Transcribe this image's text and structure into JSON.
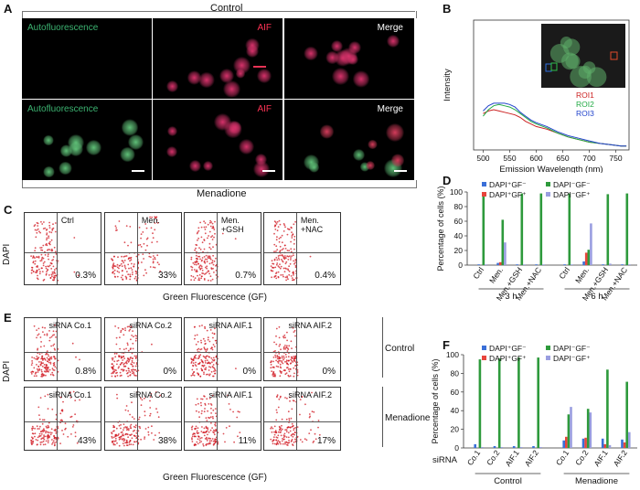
{
  "panel_a": {
    "label": "A",
    "top_title": "Control",
    "bottom_title": "Menadione",
    "cells": [
      {
        "text": "Autofluorescence",
        "color": "#3cb371"
      },
      {
        "text": "AIF",
        "color": "#ff3355"
      },
      {
        "text": "Merge",
        "color": "#ffffff"
      },
      {
        "text": "Autofluorescence",
        "color": "#3cb371"
      },
      {
        "text": "AIF",
        "color": "#ff3355"
      },
      {
        "text": "Merge",
        "color": "#ffffff"
      }
    ]
  },
  "panel_b": {
    "label": "B",
    "chart_data": {
      "type": "line",
      "xlabel": "Emission Wavelength (nm)",
      "ylabel": "Intensity",
      "x": [
        500,
        510,
        520,
        530,
        540,
        550,
        560,
        570,
        580,
        590,
        600,
        620,
        640,
        660,
        680,
        700,
        720,
        740,
        760,
        770
      ],
      "xticks": [
        500,
        550,
        600,
        650,
        700,
        750
      ],
      "xlim": [
        482,
        775
      ],
      "ylim": [
        0,
        100
      ],
      "series": [
        {
          "name": "ROI1",
          "color": "#cc2222",
          "values": [
            28,
            30,
            31,
            30,
            29,
            28,
            27,
            25,
            22,
            20,
            18,
            16,
            13,
            10,
            8,
            6,
            5,
            4,
            3,
            3
          ]
        },
        {
          "name": "ROI2",
          "color": "#22aa44",
          "values": [
            26,
            31,
            34,
            35,
            34,
            33,
            31,
            28,
            25,
            22,
            20,
            17,
            13,
            10,
            8,
            6,
            5,
            4,
            3,
            3
          ]
        },
        {
          "name": "ROI3",
          "color": "#2244cc",
          "values": [
            30,
            34,
            36,
            36,
            36,
            35,
            33,
            29,
            26,
            23,
            21,
            18,
            14,
            11,
            9,
            7,
            5,
            4,
            3,
            3
          ]
        }
      ]
    }
  },
  "panel_c": {
    "label": "C",
    "ylabel": "DAPI",
    "xlabel": "Green Fluorescence (GF)",
    "plots": [
      {
        "title": "Ctrl",
        "pct": "0.3%"
      },
      {
        "title": "Men.",
        "pct": "33%"
      },
      {
        "title": "Men.\n+GSH",
        "pct": "0.7%"
      },
      {
        "title": "Men.\n+NAC",
        "pct": "0.4%"
      }
    ]
  },
  "panel_d": {
    "label": "D",
    "chart_data": {
      "type": "bar",
      "ylabel": "Percentage of cells (%)",
      "ylim": [
        0,
        100
      ],
      "yticks": [
        0,
        20,
        40,
        60,
        80,
        100
      ],
      "categories": [
        "Ctrl",
        "Men.",
        "Men.+GSH",
        "Men.+NAC",
        "Ctrl",
        "Men.",
        "Men.+GSH",
        "Men.+NAC"
      ],
      "groups": [
        {
          "label": "3 h",
          "start": 0,
          "end": 3
        },
        {
          "label": "6 h",
          "start": 4,
          "end": 7
        }
      ],
      "series": [
        {
          "name": "DAPI⁺GF⁻",
          "color": "#3a6fd8",
          "values": [
            1,
            3,
            1,
            1,
            1,
            5,
            1,
            1
          ]
        },
        {
          "name": "DAPI⁺GF⁺",
          "color": "#e8453c",
          "values": [
            0,
            4,
            0,
            0,
            0,
            17,
            0,
            0
          ]
        },
        {
          "name": "DAPI⁻GF⁻",
          "color": "#2e9a3c",
          "values": [
            98,
            62,
            98,
            98,
            98,
            21,
            97,
            98
          ]
        },
        {
          "name": "DAPI⁻GF⁺",
          "color": "#9a9ee0",
          "values": [
            1,
            31,
            1,
            1,
            1,
            57,
            2,
            1
          ]
        }
      ]
    }
  },
  "panel_e": {
    "label": "E",
    "ylabel": "DAPI",
    "xlabel": "Green Fluorescence (GF)",
    "row_labels": [
      "Control",
      "Menadione"
    ],
    "plots": [
      {
        "title": "siRNA Co.1",
        "pct": "0.8%"
      },
      {
        "title": "siRNA Co.2",
        "pct": "0%"
      },
      {
        "title": "siRNA AIF.1",
        "pct": "0%"
      },
      {
        "title": "siRNA AIF.2",
        "pct": "0%"
      },
      {
        "title": "siRNA Co.1",
        "pct": "43%"
      },
      {
        "title": "siRNA Co.2",
        "pct": "38%"
      },
      {
        "title": "siRNA AIF.1",
        "pct": "11%"
      },
      {
        "title": "siRNA AIF.2",
        "pct": "17%"
      }
    ]
  },
  "panel_f": {
    "label": "F",
    "row_label": "siRNA",
    "chart_data": {
      "type": "bar",
      "ylabel": "Percentage of cells (%)",
      "ylim": [
        0,
        100
      ],
      "yticks": [
        0,
        20,
        40,
        60,
        80,
        100
      ],
      "categories": [
        "Co.1",
        "Co.2",
        "AIF.1",
        "AIF.2",
        "Co.1",
        "Co.2",
        "AIF.1",
        "AIF.2"
      ],
      "groups": [
        {
          "label": "Control",
          "start": 0,
          "end": 3
        },
        {
          "label": "Menadione",
          "start": 4,
          "end": 7
        }
      ],
      "series": [
        {
          "name": "DAPI⁺GF⁻",
          "color": "#3a6fd8",
          "values": [
            4,
            2,
            2,
            2,
            8,
            10,
            10,
            9
          ]
        },
        {
          "name": "DAPI⁺GF⁺",
          "color": "#e8453c",
          "values": [
            0,
            0,
            0,
            0,
            12,
            11,
            4,
            6
          ]
        },
        {
          "name": "DAPI⁻GF⁻",
          "color": "#2e9a3c",
          "values": [
            95,
            96,
            97,
            97,
            36,
            42,
            84,
            71
          ]
        },
        {
          "name": "DAPI⁻GF⁺",
          "color": "#9a9ee0",
          "values": [
            1,
            1,
            1,
            1,
            44,
            38,
            3,
            17
          ]
        }
      ]
    }
  }
}
